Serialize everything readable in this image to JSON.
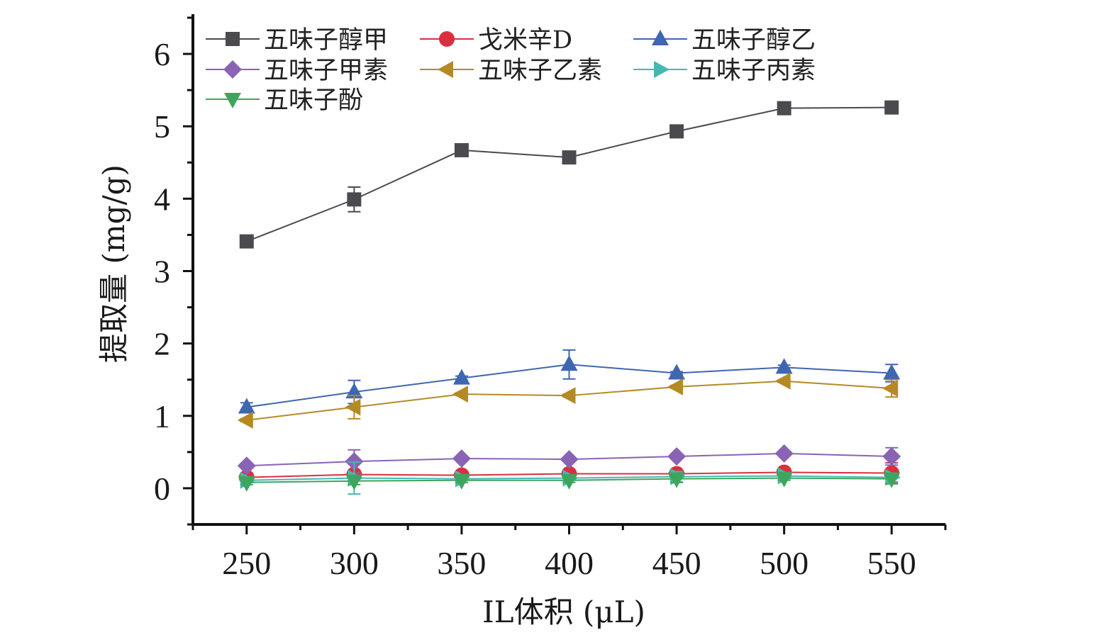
{
  "chart_data": {
    "type": "line",
    "title": "",
    "xlabel": "IL体积 (μL)",
    "ylabel": "提取量 (mg/g)",
    "x": [
      250,
      300,
      350,
      400,
      450,
      500,
      550
    ],
    "xlim": [
      225,
      575
    ],
    "ylim": [
      -0.5,
      6.5
    ],
    "xticks": [
      "250",
      "300",
      "350",
      "400",
      "450",
      "500",
      "550"
    ],
    "yticks": [
      "0",
      "1",
      "2",
      "3",
      "4",
      "5",
      "6"
    ],
    "grid": false,
    "legend_position": "top-left",
    "series": [
      {
        "name": "五味子醇甲",
        "color": "#4a4a4f",
        "marker": "square",
        "values": [
          3.41,
          3.99,
          4.67,
          4.57,
          4.93,
          5.25,
          5.26
        ],
        "errors": [
          0.02,
          0.17,
          0.03,
          0.03,
          0.03,
          0.03,
          0.03
        ]
      },
      {
        "name": "戈米辛D",
        "color": "#d93040",
        "marker": "circle",
        "values": [
          0.15,
          0.19,
          0.18,
          0.2,
          0.2,
          0.22,
          0.21
        ],
        "errors": [
          0.06,
          0.05,
          0.05,
          0.02,
          0.02,
          0.03,
          0.14
        ]
      },
      {
        "name": "五味子醇乙",
        "color": "#3f66b0",
        "marker": "triangle-up",
        "values": [
          1.12,
          1.33,
          1.52,
          1.71,
          1.59,
          1.67,
          1.59
        ],
        "errors": [
          0.06,
          0.16,
          0.03,
          0.2,
          0.02,
          0.03,
          0.12
        ]
      },
      {
        "name": "五味子甲素",
        "color": "#8a63b5",
        "marker": "diamond",
        "values": [
          0.31,
          0.37,
          0.41,
          0.4,
          0.44,
          0.48,
          0.44
        ],
        "errors": [
          0.02,
          0.16,
          0.02,
          0.02,
          0.02,
          0.02,
          0.12
        ]
      },
      {
        "name": "五味子乙素",
        "color": "#b58a25",
        "marker": "triangle-left",
        "values": [
          0.94,
          1.12,
          1.3,
          1.28,
          1.4,
          1.48,
          1.38
        ],
        "errors": [
          0.02,
          0.16,
          0.02,
          0.02,
          0.02,
          0.02,
          0.12
        ]
      },
      {
        "name": "五味子丙素",
        "color": "#45b8b0",
        "marker": "triangle-right",
        "values": [
          0.11,
          0.14,
          0.13,
          0.14,
          0.16,
          0.17,
          0.15
        ],
        "errors": [
          0.03,
          0.22,
          0.05,
          0.03,
          0.07,
          0.04,
          0.06
        ]
      },
      {
        "name": "五味子酚",
        "color": "#3ea55e",
        "marker": "triangle-down",
        "values": [
          0.08,
          0.1,
          0.11,
          0.11,
          0.13,
          0.14,
          0.13
        ],
        "errors": [
          0.03,
          0.05,
          0.03,
          0.03,
          0.05,
          0.03,
          0.07
        ]
      }
    ]
  }
}
